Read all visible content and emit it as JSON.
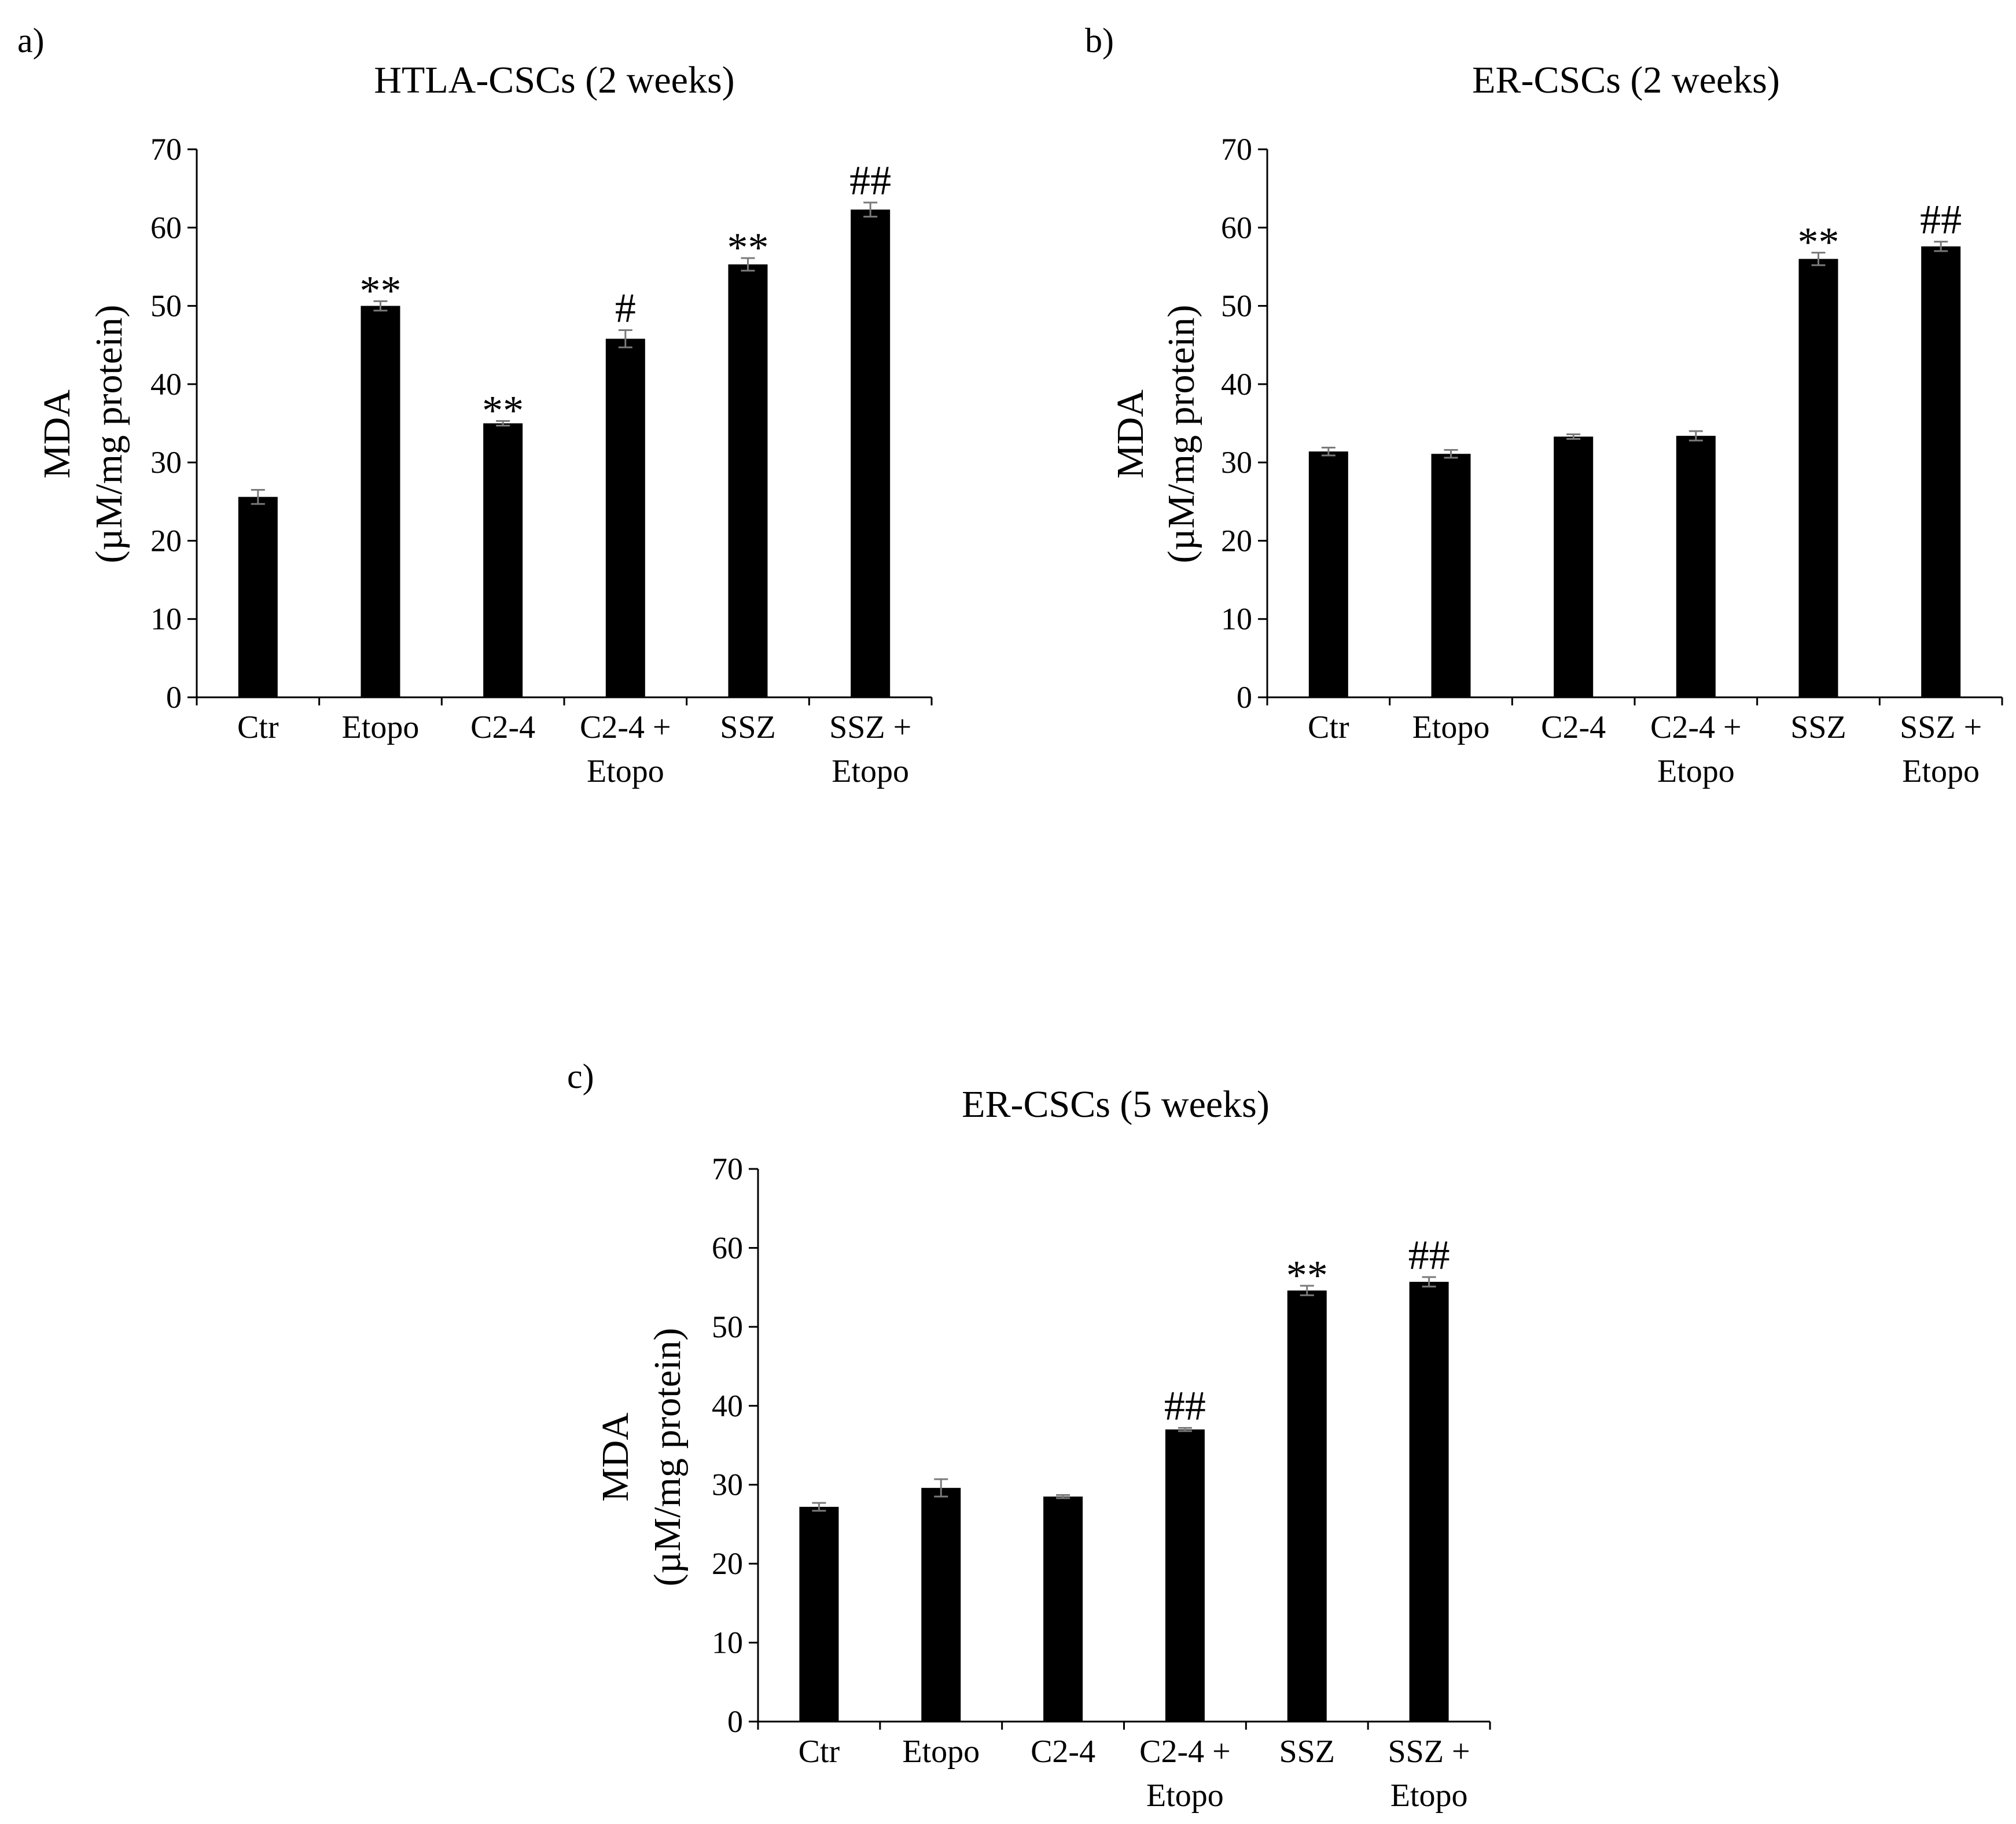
{
  "chart_data": [
    {
      "panel": "a)",
      "type": "bar",
      "title": "HTLA-CSCs (2 weeks)",
      "ylabel": "MDA",
      "ylabel_sub": "(µM/mg protein)",
      "xlabel": "",
      "ylim": [
        0,
        70
      ],
      "yticks": [
        0,
        10,
        20,
        30,
        40,
        50,
        60,
        70
      ],
      "categories": [
        [
          "Ctr"
        ],
        [
          "Etopo"
        ],
        [
          "C2-4"
        ],
        [
          "C2-4 +",
          "Etopo"
        ],
        [
          "SSZ"
        ],
        [
          "SSZ +",
          "Etopo"
        ]
      ],
      "values": [
        25.6,
        50.0,
        35.0,
        45.8,
        55.3,
        62.3
      ],
      "errors": [
        0.9,
        0.6,
        0.3,
        1.1,
        0.8,
        0.9
      ],
      "annotations": [
        "",
        "**",
        "**",
        "#",
        "**",
        "##"
      ],
      "grid": false
    },
    {
      "panel": "b)",
      "type": "bar",
      "title": "ER-CSCs (2 weeks)",
      "ylabel": "MDA",
      "ylabel_sub": "(µM/mg protein)",
      "xlabel": "",
      "ylim": [
        0,
        70
      ],
      "yticks": [
        0,
        10,
        20,
        30,
        40,
        50,
        60,
        70
      ],
      "categories": [
        [
          "Ctr"
        ],
        [
          "Etopo"
        ],
        [
          "C2-4"
        ],
        [
          "C2-4 +",
          "Etopo"
        ],
        [
          "SSZ"
        ],
        [
          "SSZ +",
          "Etopo"
        ]
      ],
      "values": [
        31.4,
        31.1,
        33.3,
        33.4,
        56.0,
        57.6
      ],
      "errors": [
        0.5,
        0.5,
        0.3,
        0.6,
        0.8,
        0.6
      ],
      "annotations": [
        "",
        "",
        "",
        "",
        "**",
        "##"
      ],
      "grid": false
    },
    {
      "panel": "c)",
      "type": "bar",
      "title": "ER-CSCs (5 weeks)",
      "ylabel": "MDA",
      "ylabel_sub": "(µM/mg protein)",
      "xlabel": "",
      "ylim": [
        0,
        70
      ],
      "yticks": [
        0,
        10,
        20,
        30,
        40,
        50,
        60,
        70
      ],
      "categories": [
        [
          "Ctr"
        ],
        [
          "Etopo"
        ],
        [
          "C2-4"
        ],
        [
          "C2-4 +",
          "Etopo"
        ],
        [
          "SSZ"
        ],
        [
          "SSZ +",
          "Etopo"
        ]
      ],
      "values": [
        27.2,
        29.6,
        28.5,
        37.0,
        54.6,
        55.7
      ],
      "errors": [
        0.5,
        1.1,
        0.2,
        0.2,
        0.6,
        0.6
      ],
      "annotations": [
        "",
        "",
        "",
        "##",
        "**",
        "##"
      ],
      "grid": false
    }
  ]
}
